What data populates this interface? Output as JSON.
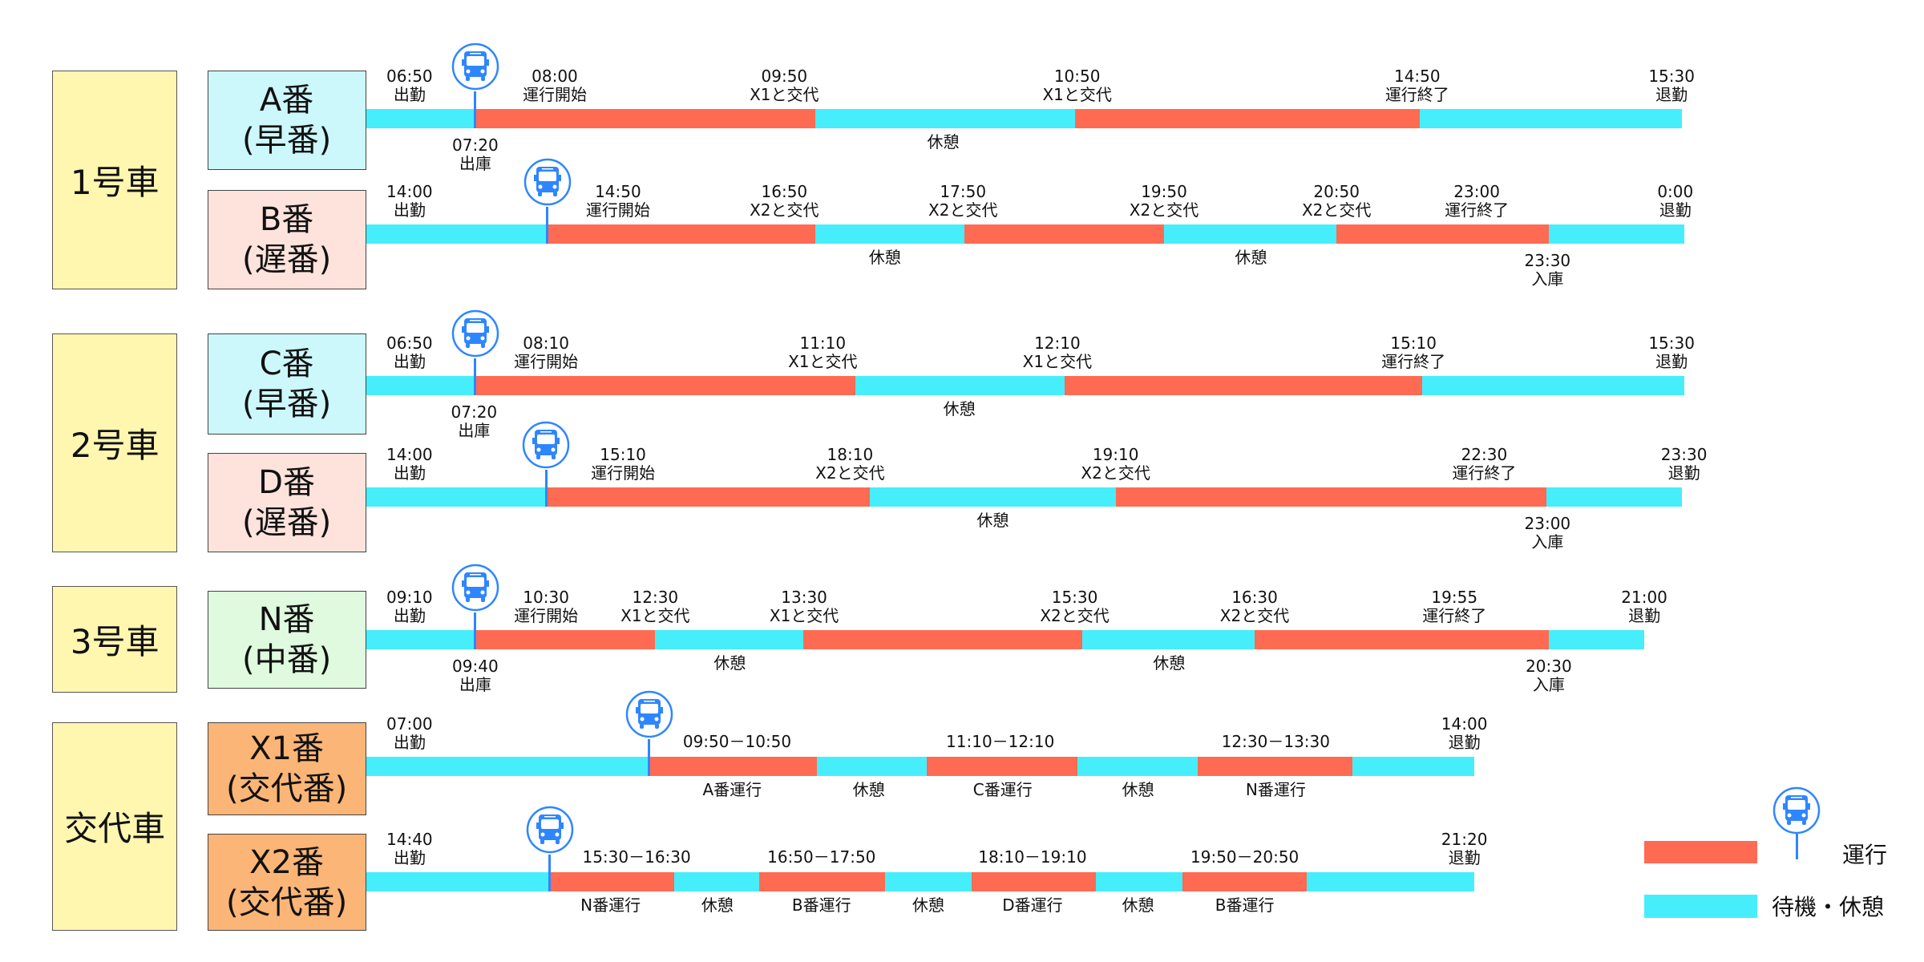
{
  "colors": {
    "run": "#ff6b52",
    "idle": "#46eefc",
    "bus": "#2e86ff",
    "car_bg": "#fff6b0"
  },
  "cars": [
    {
      "name": "1号車",
      "shifts": [
        {
          "name": "A番",
          "sub": "(早番)",
          "bg": "#ccf8fc",
          "segments": [
            "idle",
            "run",
            "idle",
            "run",
            "idle"
          ],
          "above": [
            {
              "time": "06:50",
              "label": "出勤"
            },
            {
              "time": "08:00",
              "label": "運行開始"
            },
            {
              "time": "09:50",
              "label": "X1と交代"
            },
            {
              "time": "10:50",
              "label": "X1と交代"
            },
            {
              "time": "14:50",
              "label": "運行終了"
            },
            {
              "time": "15:30",
              "label": "退勤"
            }
          ],
          "below": [
            {
              "time": "07:20",
              "label": "出庫"
            },
            {
              "time": "",
              "label": "休憩"
            }
          ]
        },
        {
          "name": "B番",
          "sub": "(遅番)",
          "bg": "#fde3dc",
          "segments": [
            "idle",
            "run",
            "idle",
            "run",
            "idle",
            "run",
            "idle"
          ],
          "above": [
            {
              "time": "14:00",
              "label": "出勤"
            },
            {
              "time": "14:50",
              "label": "運行開始"
            },
            {
              "time": "16:50",
              "label": "X2と交代"
            },
            {
              "time": "17:50",
              "label": "X2と交代"
            },
            {
              "time": "19:50",
              "label": "X2と交代"
            },
            {
              "time": "20:50",
              "label": "X2と交代"
            },
            {
              "time": "23:00",
              "label": "運行終了"
            },
            {
              "time": "0:00",
              "label": "退勤"
            }
          ],
          "below": [
            {
              "time": "",
              "label": "休憩"
            },
            {
              "time": "",
              "label": "休憩"
            },
            {
              "time": "23:30",
              "label": "入庫"
            }
          ]
        }
      ]
    },
    {
      "name": "2号車",
      "shifts": [
        {
          "name": "C番",
          "sub": "(早番)",
          "bg": "#ccf8fc",
          "segments": [
            "idle",
            "run",
            "idle",
            "run",
            "idle"
          ],
          "above": [
            {
              "time": "06:50",
              "label": "出勤"
            },
            {
              "time": "08:10",
              "label": "運行開始"
            },
            {
              "time": "11:10",
              "label": "X1と交代"
            },
            {
              "time": "12:10",
              "label": "X1と交代"
            },
            {
              "time": "15:10",
              "label": "運行終了"
            },
            {
              "time": "15:30",
              "label": "退勤"
            }
          ],
          "below": [
            {
              "time": "07:20",
              "label": "出庫"
            },
            {
              "time": "",
              "label": "休憩"
            }
          ]
        },
        {
          "name": "D番",
          "sub": "(遅番)",
          "bg": "#fde3dc",
          "segments": [
            "idle",
            "run",
            "idle",
            "run",
            "idle"
          ],
          "above": [
            {
              "time": "14:00",
              "label": "出勤"
            },
            {
              "time": "15:10",
              "label": "運行開始"
            },
            {
              "time": "18:10",
              "label": "X2と交代"
            },
            {
              "time": "19:10",
              "label": "X2と交代"
            },
            {
              "time": "22:30",
              "label": "運行終了"
            },
            {
              "time": "23:30",
              "label": "退勤"
            }
          ],
          "below": [
            {
              "time": "",
              "label": "休憩"
            },
            {
              "time": "23:00",
              "label": "入庫"
            }
          ]
        }
      ]
    },
    {
      "name": "3号車",
      "shifts": [
        {
          "name": "N番",
          "sub": "(中番)",
          "bg": "#dffadf",
          "segments": [
            "idle",
            "run",
            "idle",
            "run",
            "idle",
            "run",
            "idle"
          ],
          "above": [
            {
              "time": "09:10",
              "label": "出勤"
            },
            {
              "time": "10:30",
              "label": "運行開始"
            },
            {
              "time": "12:30",
              "label": "X1と交代"
            },
            {
              "time": "13:30",
              "label": "X1と交代"
            },
            {
              "time": "15:30",
              "label": "X2と交代"
            },
            {
              "time": "16:30",
              "label": "X2と交代"
            },
            {
              "time": "19:55",
              "label": "運行終了"
            },
            {
              "time": "21:00",
              "label": "退勤"
            }
          ],
          "below": [
            {
              "time": "09:40",
              "label": "出庫"
            },
            {
              "time": "",
              "label": "休憩"
            },
            {
              "time": "",
              "label": "休憩"
            },
            {
              "time": "20:30",
              "label": "入庫"
            }
          ]
        }
      ]
    },
    {
      "name": "交代車",
      "shifts": [
        {
          "name": "X1番",
          "sub": "(交代番)",
          "bg": "#fbb576",
          "segments": [
            "idle",
            "run",
            "idle",
            "run",
            "idle",
            "run",
            "idle"
          ],
          "above": [
            {
              "time": "07:00",
              "label": "出勤"
            },
            {
              "time": "09:50－10:50",
              "label": ""
            },
            {
              "time": "11:10－12:10",
              "label": ""
            },
            {
              "time": "12:30－13:30",
              "label": ""
            },
            {
              "time": "14:00",
              "label": "退勤"
            }
          ],
          "below": [
            {
              "time": "",
              "label": "A番運行"
            },
            {
              "time": "",
              "label": "休憩"
            },
            {
              "time": "",
              "label": "C番運行"
            },
            {
              "time": "",
              "label": "休憩"
            },
            {
              "time": "",
              "label": "N番運行"
            }
          ]
        },
        {
          "name": "X2番",
          "sub": "(交代番)",
          "bg": "#fbb576",
          "segments": [
            "idle",
            "run",
            "idle",
            "run",
            "idle",
            "run",
            "idle",
            "run",
            "idle"
          ],
          "above": [
            {
              "time": "14:40",
              "label": "出勤"
            },
            {
              "time": "15:30－16:30",
              "label": ""
            },
            {
              "time": "16:50－17:50",
              "label": ""
            },
            {
              "time": "18:10－19:10",
              "label": ""
            },
            {
              "time": "19:50－20:50",
              "label": ""
            },
            {
              "time": "21:20",
              "label": "退勤"
            }
          ],
          "below": [
            {
              "time": "",
              "label": "N番運行"
            },
            {
              "time": "",
              "label": "休憩"
            },
            {
              "time": "",
              "label": "B番運行"
            },
            {
              "time": "",
              "label": "休憩"
            },
            {
              "time": "",
              "label": "D番運行"
            },
            {
              "time": "",
              "label": "休憩"
            },
            {
              "time": "",
              "label": "B番運行"
            }
          ]
        }
      ]
    }
  ],
  "legend": {
    "run": "運行",
    "idle": "待機・休憩"
  }
}
